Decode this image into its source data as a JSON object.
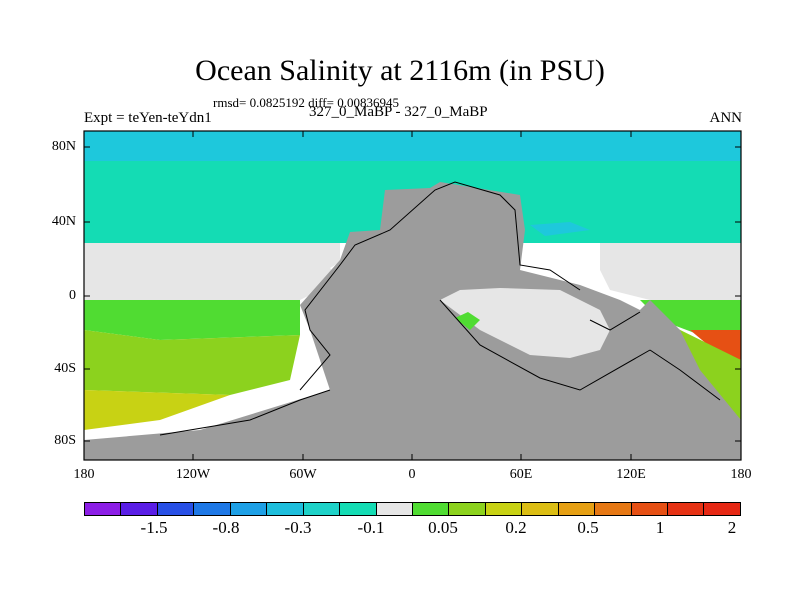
{
  "title": "Ocean Salinity at 2116m (in PSU)",
  "stats": "rmsd= 0.0825192 diff= 0.00836945",
  "subtitle": "327_0_MaBP - 327_0_MaBP",
  "left_label": "Expt = teYen-teYdn1",
  "right_label": "ANN",
  "axes": {
    "lat_ticks": [
      "80N",
      "40N",
      "0",
      "40S",
      "80S"
    ],
    "lon_ticks": [
      "180",
      "120W",
      "60W",
      "0",
      "60E",
      "120E",
      "180"
    ]
  },
  "colors": {
    "land": "#9c9c9c",
    "ocean_north": "#1ec8dc",
    "ocean_mid": "#14dcb4",
    "ocean_equator": "#e6e6e6",
    "ocean_south_upper": "#50dc32",
    "ocean_south_mid": "#8cd21e",
    "ocean_south_deep": "#c8d214",
    "ocean_orange": "#e65014"
  },
  "colorbar": {
    "colors": [
      "#8c1ee6",
      "#5a1ee6",
      "#2850e6",
      "#1e78e6",
      "#1ea0e6",
      "#1ebedc",
      "#1ed2c8",
      "#14dcb4",
      "#e6e6e6",
      "#50dc32",
      "#8cd21e",
      "#c8d214",
      "#dcbe14",
      "#e6a014",
      "#e67814",
      "#e65014",
      "#e63214",
      "#e62814"
    ],
    "labels": [
      "-1.5",
      "-0.8",
      "-0.3",
      "-0.1",
      "0.05",
      "0.2",
      "0.5",
      "1",
      "2"
    ]
  }
}
